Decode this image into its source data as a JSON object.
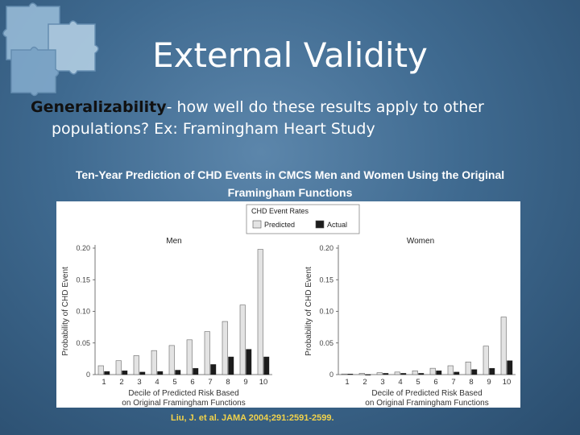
{
  "slide": {
    "title": "External Validity",
    "subtitle_term": "Generalizability",
    "subtitle_rest": "- how well do these results apply to other",
    "subtitle_line2": "populations?  Ex: Framingham Heart Study",
    "figure_title_line1": "Ten-Year Prediction of CHD Events in CMCS Men and Women Using the Original",
    "figure_title_line2": "Framingham Functions",
    "citation": "Liu, J. et al. JAMA 2004;291:2591-2599."
  },
  "legend": {
    "title": "CHD Event Rates",
    "predicted": "Predicted",
    "actual": "Actual"
  },
  "colors": {
    "predicted": "#e3e3e3",
    "actual": "#1c1c1c"
  },
  "chart_data": [
    {
      "type": "bar",
      "title": "Men",
      "xlabel_line1": "Decile of Predicted Risk Based",
      "xlabel_line2": "on Original Framingham Functions",
      "ylabel": "Probability of CHD Event",
      "categories": [
        "1",
        "2",
        "3",
        "4",
        "5",
        "6",
        "7",
        "8",
        "9",
        "10"
      ],
      "yticks": [
        "0",
        "0.05",
        "0.10",
        "0.15",
        "0.20"
      ],
      "ylim": [
        0,
        0.2
      ],
      "series": [
        {
          "name": "Predicted",
          "values": [
            0.014,
            0.022,
            0.03,
            0.038,
            0.046,
            0.055,
            0.068,
            0.084,
            0.11,
            0.198
          ]
        },
        {
          "name": "Actual",
          "values": [
            0.005,
            0.006,
            0.004,
            0.005,
            0.007,
            0.01,
            0.016,
            0.028,
            0.04,
            0.028
          ]
        }
      ]
    },
    {
      "type": "bar",
      "title": "Women",
      "xlabel_line1": "Decile of Predicted Risk Based",
      "xlabel_line2": "on Original Framingham Functions",
      "ylabel": "Probability of CHD Event",
      "categories": [
        "1",
        "2",
        "3",
        "4",
        "5",
        "6",
        "7",
        "8",
        "9",
        "10"
      ],
      "yticks": [
        "0",
        "0.05",
        "0.10",
        "0.15",
        "0.20"
      ],
      "ylim": [
        0,
        0.2
      ],
      "series": [
        {
          "name": "Predicted",
          "values": [
            0.001,
            0.002,
            0.003,
            0.004,
            0.006,
            0.01,
            0.014,
            0.02,
            0.045,
            0.091
          ]
        },
        {
          "name": "Actual",
          "values": [
            0.001,
            0.0,
            0.002,
            0.002,
            0.002,
            0.006,
            0.004,
            0.008,
            0.01,
            0.022
          ]
        }
      ]
    }
  ]
}
